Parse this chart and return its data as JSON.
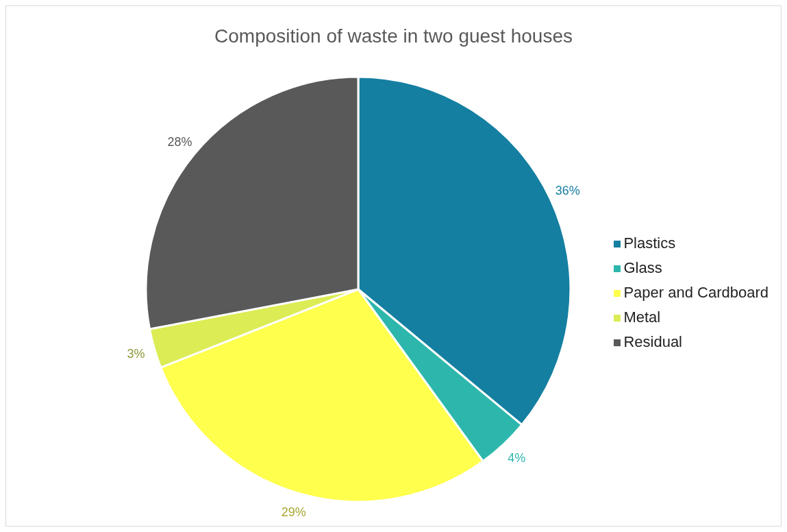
{
  "chart_data": {
    "type": "pie",
    "title": "Composition of waste in two guest houses",
    "categories": [
      "Plastics",
      "Glass",
      "Paper and Cardboard",
      "Metal",
      "Residual"
    ],
    "values": [
      36,
      4,
      29,
      3,
      28
    ],
    "colors": [
      "#157fa1",
      "#2db7ac",
      "#ffff4d",
      "#dcec54",
      "#595959"
    ],
    "value_labels": [
      "36%",
      "4%",
      "29%",
      "3%",
      "28%"
    ],
    "legend": "right"
  }
}
